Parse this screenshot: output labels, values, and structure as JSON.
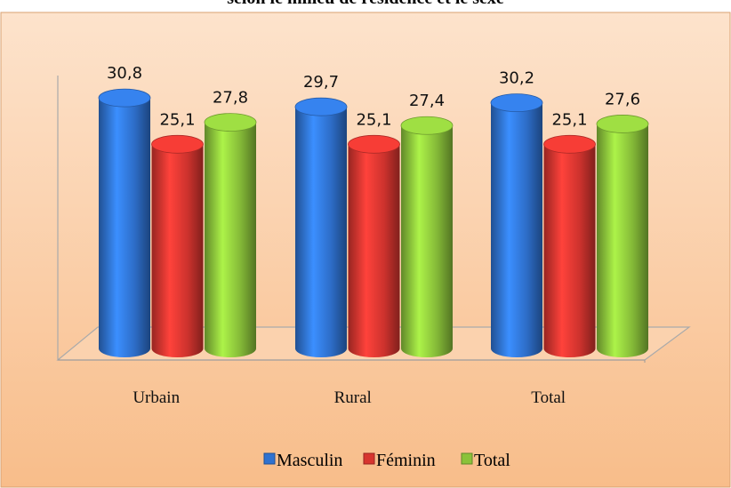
{
  "chart_data": {
    "type": "bar",
    "title": "selon le milieu de résidence et le sexe",
    "categories": [
      "Urbain",
      "Rural",
      "Total"
    ],
    "series": [
      {
        "name": "Masculin",
        "color": "#2f72d0",
        "values": [
          30.8,
          29.7,
          30.2
        ],
        "value_labels": [
          "30,8",
          "29,7",
          "30,2"
        ]
      },
      {
        "name": "Féminin",
        "color": "#d7352f",
        "values": [
          25.1,
          25.1,
          25.1
        ],
        "value_labels": [
          "25,1",
          "25,1",
          "25,1"
        ]
      },
      {
        "name": "Total",
        "color": "#8ac23a",
        "values": [
          27.8,
          27.4,
          27.6
        ],
        "value_labels": [
          "27,8",
          "27,4",
          "27,6"
        ]
      }
    ],
    "ylim": [
      0,
      33
    ],
    "legend": "bottom"
  }
}
